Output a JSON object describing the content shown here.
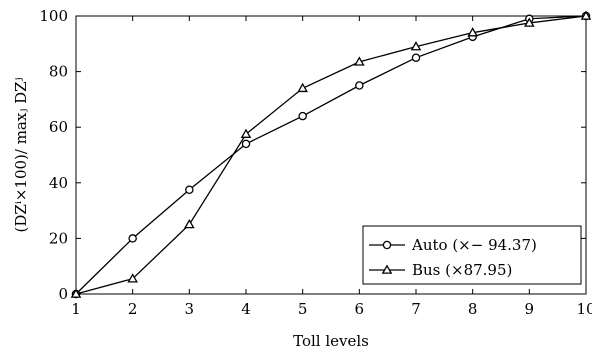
{
  "chart_data": {
    "type": "line",
    "xlabel": "Toll levels",
    "ylabel": "(DZⁱ×100)/ maxⱼ DZʲ",
    "x": [
      1,
      2,
      3,
      4,
      5,
      6,
      7,
      8,
      9,
      10
    ],
    "xlim": [
      1,
      10
    ],
    "ylim": [
      0,
      100
    ],
    "xticks": [
      "1",
      "2",
      "3",
      "4",
      "5",
      "6",
      "7",
      "8",
      "9",
      "10"
    ],
    "yticks": [
      "0",
      "20",
      "40",
      "60",
      "80",
      "100"
    ],
    "yticks_values": [
      0,
      20,
      40,
      60,
      80,
      100
    ],
    "grid": false,
    "legend_position": "bottom-right",
    "series": [
      {
        "name": "Auto (×− 94.37)",
        "marker": "circle",
        "values": [
          0,
          20,
          37.5,
          54,
          64,
          75,
          85,
          92.5,
          99,
          100
        ]
      },
      {
        "name": "Bus (×87.95)",
        "marker": "triangle",
        "values": [
          0,
          5.5,
          25,
          57.5,
          74,
          83.5,
          89,
          94,
          97.5,
          100
        ]
      }
    ],
    "color": "#000000"
  }
}
